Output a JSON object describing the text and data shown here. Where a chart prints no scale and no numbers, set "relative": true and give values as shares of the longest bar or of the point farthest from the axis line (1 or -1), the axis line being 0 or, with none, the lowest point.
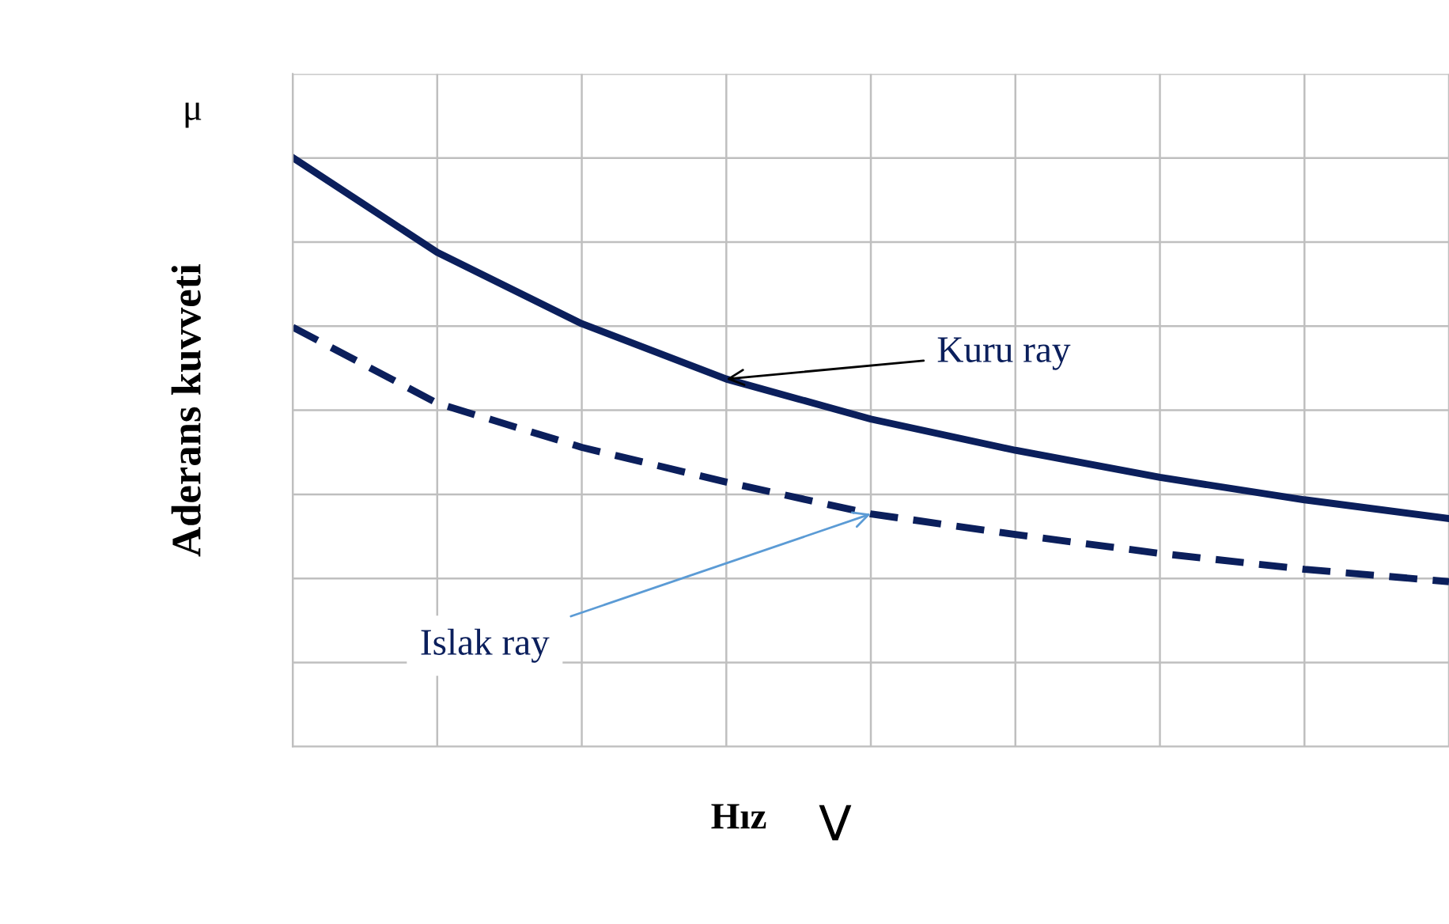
{
  "chart_data": {
    "type": "line",
    "relative": true,
    "xlabel": "Hız",
    "ylabel": "Aderans kuvveti",
    "annotations": [
      "μ",
      "V"
    ],
    "grid": true,
    "categories": [
      null,
      null,
      null,
      null,
      null,
      null,
      null,
      null,
      null
    ],
    "series": [
      {
        "name": "Kuru ray",
        "color": "#0b1f5c",
        "line_style": "solid",
        "values": [
          1,
          0.839,
          0.718,
          0.624,
          0.556,
          0.503,
          0.457,
          0.419,
          0.387
        ]
      },
      {
        "name": "Islak ray",
        "color": "#0b1f5c",
        "line_style": "dashed",
        "values": [
          0.712,
          0.583,
          0.508,
          0.449,
          0.395,
          0.36,
          0.328,
          0.301,
          0.28
        ]
      }
    ]
  }
}
